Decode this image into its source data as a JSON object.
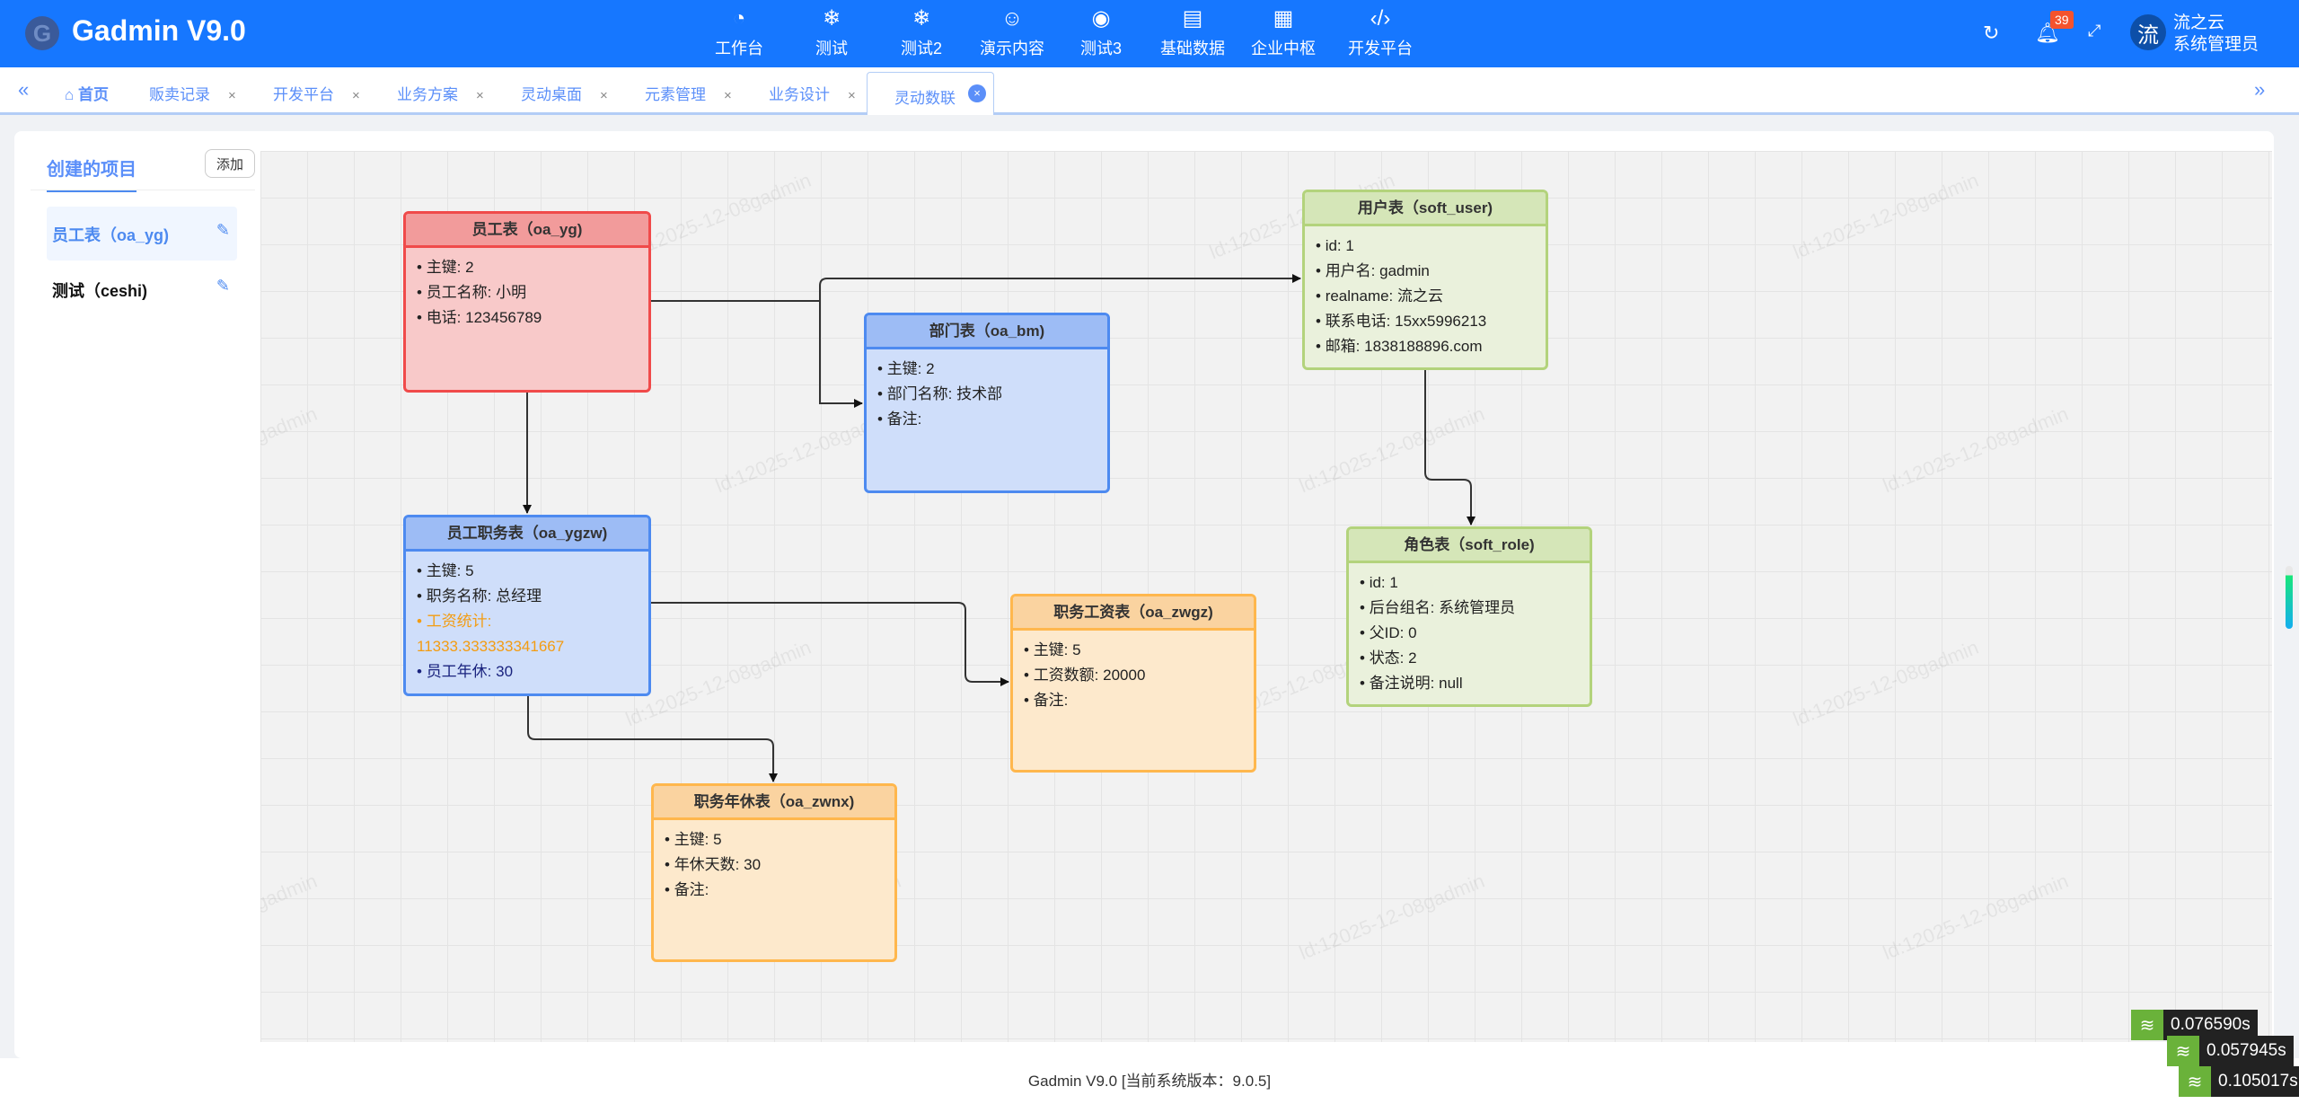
{
  "header": {
    "app_title": "Gadmin V9.0",
    "logo_letter": "G",
    "nav": [
      {
        "label": "工作台",
        "icon": "dashboard-icon",
        "glyph": "◔"
      },
      {
        "label": "测试",
        "icon": "snowflake-icon",
        "glyph": "❄"
      },
      {
        "label": "测试2",
        "icon": "snowflake-icon",
        "glyph": "❄"
      },
      {
        "label": "演示内容",
        "icon": "smile-icon",
        "glyph": "☺"
      },
      {
        "label": "测试3",
        "icon": "compass-icon",
        "glyph": "◉"
      },
      {
        "label": "基础数据",
        "icon": "clipboard-icon",
        "glyph": "▤"
      },
      {
        "label": "企业中枢",
        "icon": "apps-icon",
        "glyph": "▦"
      },
      {
        "label": "开发平台",
        "icon": "code-icon",
        "glyph": "‹/›"
      }
    ],
    "notification_count": "39",
    "avatar_letter": "流",
    "user_name": "流之云",
    "user_role": "系统管理员"
  },
  "tabs": {
    "home": "首页",
    "items": [
      "贩卖记录",
      "开发平台",
      "业务方案",
      "灵动桌面",
      "元素管理",
      "业务设计"
    ],
    "active": "灵动数联",
    "close_glyph": "×"
  },
  "sidebar": {
    "title": "创建的项目",
    "add_label": "添加",
    "items": [
      {
        "label": "员工表（oa_yg)",
        "selected": true
      },
      {
        "label": "测试（ceshi)",
        "selected": false
      }
    ]
  },
  "watermark": "ld:12025-12-08gadmin",
  "colors": {
    "red": {
      "border": "#f04a4a",
      "head": "#f29b9b",
      "body": "#f8c9c9"
    },
    "blue": {
      "border": "#4d8af0",
      "head": "#9dbcf5",
      "body": "#cfdefa"
    },
    "green": {
      "border": "#b3d37c",
      "head": "#d5e6b8",
      "body": "#eaf1dc"
    },
    "orange": {
      "border": "#ffb74d",
      "head": "#fad3a0",
      "body": "#fde9cc"
    }
  },
  "tables": [
    {
      "id": "oa_yg",
      "title": "员工表（oa_yg)",
      "color": "red",
      "fields": [
        {
          "text": "主键: 2"
        },
        {
          "text": "员工名称: 小明"
        },
        {
          "text": "电话: 123456789"
        }
      ]
    },
    {
      "id": "oa_ygzw",
      "title": "员工职务表（oa_ygzw)",
      "color": "blue",
      "fields": [
        {
          "text": "主键: 5"
        },
        {
          "text": "职务名称: 总经理"
        },
        {
          "text": "工资统计: 11333.333333341667",
          "color": "#f39c12"
        },
        {
          "text": "员工年休: 30",
          "color": "#1a237e"
        }
      ]
    },
    {
      "id": "oa_bm",
      "title": "部门表（oa_bm)",
      "color": "blue",
      "fields": [
        {
          "text": "主键: 2"
        },
        {
          "text": "部门名称: 技术部"
        },
        {
          "text": "备注: "
        }
      ]
    },
    {
      "id": "soft_user",
      "title": "用户表（soft_user)",
      "color": "green",
      "fields": [
        {
          "text": "id: 1"
        },
        {
          "text": "用户名: gadmin"
        },
        {
          "text": "realname: 流之云"
        },
        {
          "text": "联系电话: 15xx5996213"
        },
        {
          "text": "邮箱: 1838188896.com"
        }
      ]
    },
    {
      "id": "soft_role",
      "title": "角色表（soft_role)",
      "color": "green",
      "fields": [
        {
          "text": "id: 1"
        },
        {
          "text": "后台组名: 系统管理员"
        },
        {
          "text": "父ID: 0"
        },
        {
          "text": "状态: 2"
        },
        {
          "text": "备注说明: null"
        }
      ]
    },
    {
      "id": "oa_zwgz",
      "title": "职务工资表（oa_zwgz)",
      "color": "orange",
      "fields": [
        {
          "text": "主键: 5"
        },
        {
          "text": "工资数额: 20000"
        },
        {
          "text": "备注: "
        }
      ]
    },
    {
      "id": "oa_zwnx",
      "title": "职务年休表（oa_zwnx)",
      "color": "orange",
      "fields": [
        {
          "text": "主键: 5"
        },
        {
          "text": "年休天数: 30"
        },
        {
          "text": "备注: "
        }
      ]
    }
  ],
  "footer": "Gadmin V9.0 [当前系统版本：9.0.5]",
  "perf": [
    "0.076590s",
    "0.057945s",
    "0.105017s"
  ]
}
